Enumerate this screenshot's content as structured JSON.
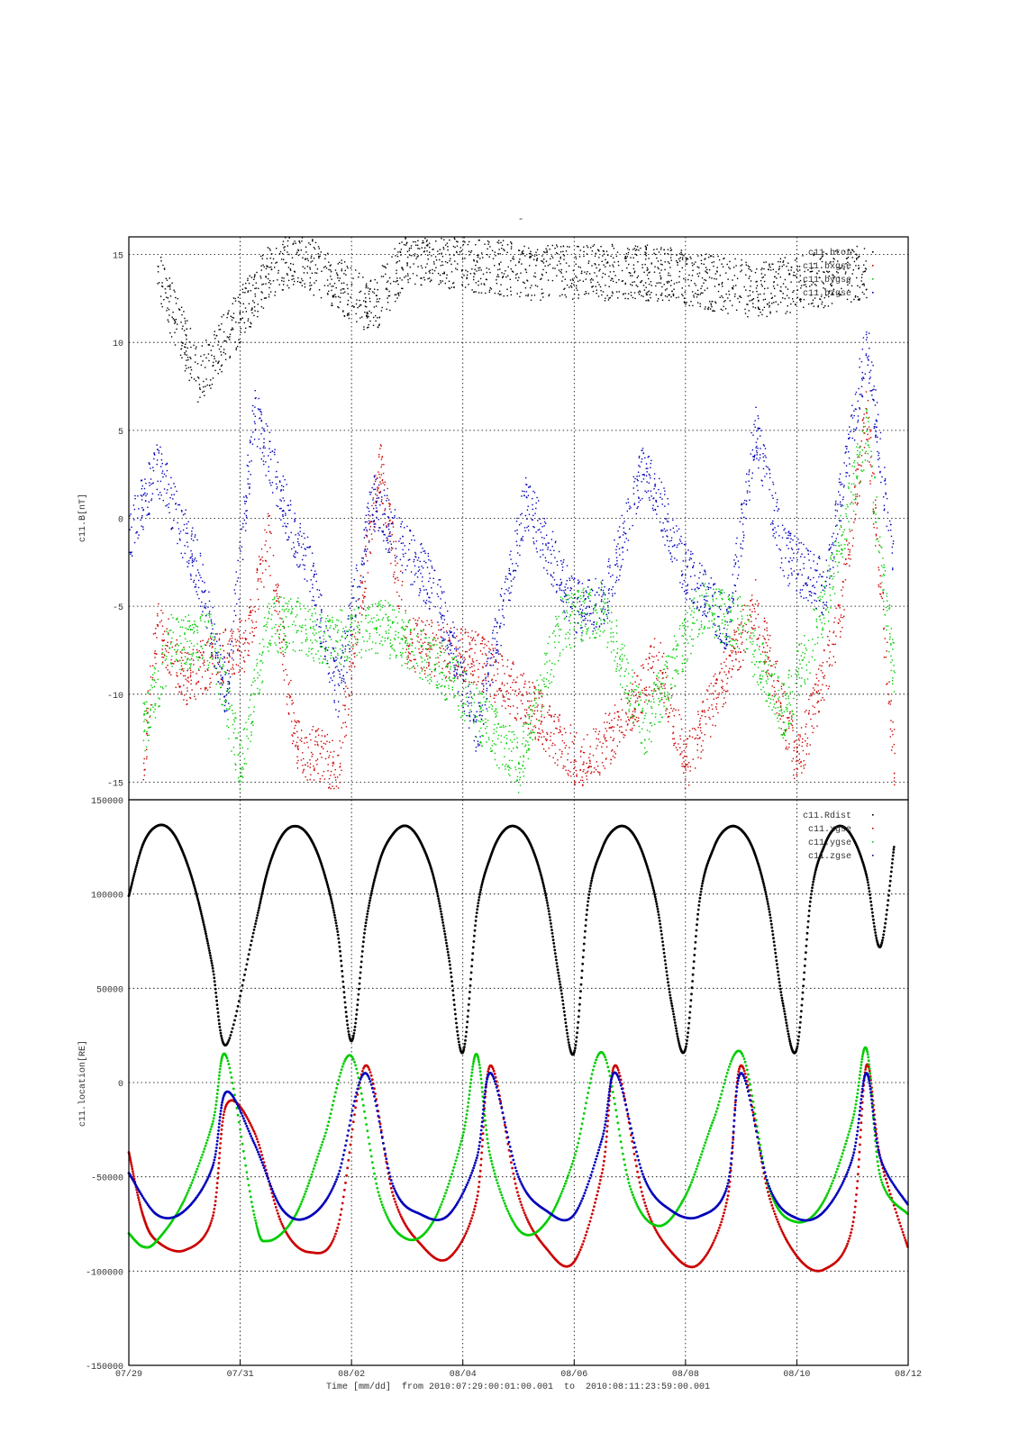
{
  "figure": {
    "title": "-",
    "xlabel": "Time [mm/dd]  from 2010:07:29:00:01:00.001  to  2010:08:11:23:59:00.001",
    "x_tick_labels": [
      "07/29",
      "07/31",
      "08/02",
      "08/04",
      "08/06",
      "08/08",
      "08/10",
      "08/12"
    ]
  },
  "chart_data": [
    {
      "type": "scatter",
      "panel": "top",
      "ylabel": "c11.B[nT]",
      "ylim": [
        -16,
        16
      ],
      "xlim": [
        "2010-07-29",
        "2010-08-12"
      ],
      "grid": true,
      "legend": "top-right",
      "y_ticks": [
        15,
        10,
        5,
        0,
        -5,
        -10,
        -15
      ],
      "y_tick_labels": [
        "15",
        "10",
        "5",
        "0",
        "-5",
        "-10",
        "-15"
      ],
      "series": [
        {
          "name": "c11.btot",
          "color": "#000000",
          "x": [
            "07/29 12:00",
            "07/30 06:00",
            "07/31 12:00",
            "08/01 00:00",
            "08/02 09:00",
            "08/03 00:00",
            "08/05 06:00",
            "08/07 09:00",
            "08/09 06:00",
            "08/11 06:00"
          ],
          "y": [
            14,
            8,
            14,
            15,
            12,
            15,
            14,
            14,
            13,
            14
          ]
        },
        {
          "name": "c11.bxgse",
          "color": "#cc0000",
          "x": [
            "07/29 06:00",
            "07/29 12:00",
            "07/30 00:00",
            "07/31 03:00",
            "07/31 12:00",
            "08/01 00:00",
            "08/01 18:00",
            "08/02 12:00",
            "08/03 00:00",
            "08/04 06:00",
            "08/05 00:00",
            "08/06 03:00",
            "08/06 18:00",
            "08/07 12:00",
            "08/08 00:00",
            "08/09 06:00",
            "08/10 00:00",
            "08/10 18:00",
            "08/11 06:00",
            "08/11 18:00"
          ],
          "y": [
            -14,
            -6,
            -9,
            -7,
            -1,
            -13,
            -14,
            3,
            -7,
            -8,
            -10,
            -14,
            -12,
            -8,
            -14,
            -5,
            -14,
            -6,
            6,
            -14
          ]
        },
        {
          "name": "c11.bygse",
          "color": "#00cc00",
          "x": [
            "07/29 06:00",
            "07/29 18:00",
            "07/30 12:00",
            "07/31 00:00",
            "07/31 12:00",
            "08/01 00:00",
            "08/01 12:00",
            "08/02 12:00",
            "08/03 12:00",
            "08/04 00:00",
            "08/05 00:00",
            "08/05 18:00",
            "08/06 12:00",
            "08/07 06:00",
            "08/08 06:00",
            "08/09 00:00",
            "08/09 18:00",
            "08/10 12:00",
            "08/11 06:00",
            "08/11 18:00"
          ],
          "y": [
            -12,
            -7,
            -7,
            -14,
            -6,
            -6,
            -7,
            -6,
            -8,
            -10,
            -14,
            -6,
            -5,
            -12,
            -5,
            -6,
            -11,
            -5,
            5,
            -9
          ]
        },
        {
          "name": "c11.bzgse",
          "color": "#0000bb",
          "x": [
            "07/29 00:00",
            "07/29 12:00",
            "07/30 06:00",
            "07/30 18:00",
            "07/31 06:00",
            "07/31 18:00",
            "08/01 06:00",
            "08/01 18:00",
            "08/02 09:00",
            "08/03 00:00",
            "08/03 12:00",
            "08/04 06:00",
            "08/05 03:00",
            "08/06 00:00",
            "08/06 12:00",
            "08/07 06:00",
            "08/08 00:00",
            "08/08 18:00",
            "08/09 06:00",
            "08/09 18:00",
            "08/10 12:00",
            "08/11 06:00",
            "08/11 18:00"
          ],
          "y": [
            -1,
            3,
            -3,
            -10,
            6,
            1,
            -3,
            -10,
            1,
            -2,
            -4,
            -12,
            1,
            -5,
            -5,
            3,
            -3,
            -6,
            5,
            -2,
            -4,
            10,
            -3
          ]
        }
      ]
    },
    {
      "type": "scatter",
      "panel": "bottom",
      "ylabel": "c11.location[RE]",
      "ylim": [
        -150000,
        150000
      ],
      "xlim": [
        "2010-07-29",
        "2010-08-12"
      ],
      "grid": true,
      "legend": "top-right",
      "y_ticks": [
        150000,
        100000,
        50000,
        0,
        -50000,
        -100000,
        -150000
      ],
      "y_tick_labels": [
        "150000",
        "100000",
        "50000",
        "0",
        "-50000",
        "-100000",
        "-150000"
      ],
      "series": [
        {
          "name": "c11.Rdist",
          "color": "#000000",
          "x": [
            "07/29 00:00",
            "07/29 06:00",
            "07/29 12:00",
            "07/29 18:00",
            "07/30 00:00",
            "07/30 06:00",
            "07/30 12:00",
            "07/30 18:00",
            "07/31 06:00",
            "07/31 12:00",
            "07/31 18:00",
            "08/01 00:00",
            "08/01 06:00",
            "08/01 12:00",
            "08/01 18:00",
            "08/02 00:00",
            "08/02 06:00",
            "08/02 12:00",
            "08/02 18:00",
            "08/03 00:00",
            "08/03 06:00",
            "08/03 12:00",
            "08/03 18:00",
            "08/04 00:00",
            "08/04 06:00",
            "08/04 12:00",
            "08/04 18:00",
            "08/05 00:00",
            "08/05 06:00",
            "08/05 12:00",
            "08/05 18:00",
            "08/06 00:00",
            "08/06 06:00",
            "08/06 12:00",
            "08/06 18:00",
            "08/07 00:00",
            "08/07 06:00",
            "08/07 12:00",
            "08/07 18:00",
            "08/08 00:00",
            "08/08 06:00",
            "08/08 12:00",
            "08/08 18:00",
            "08/09 00:00",
            "08/09 06:00",
            "08/09 12:00",
            "08/09 18:00",
            "08/10 00:00",
            "08/10 06:00",
            "08/10 12:00",
            "08/10 18:00",
            "08/11 00:00",
            "08/11 06:00",
            "08/11 12:00",
            "08/11 18:00"
          ],
          "y": [
            99000,
            126000,
            136000,
            134000,
            120000,
            96000,
            62000,
            20000,
            81000,
            113000,
            131000,
            136000,
            130000,
            112000,
            80000,
            22000,
            83000,
            117000,
            132000,
            136000,
            127000,
            106000,
            66000,
            16000,
            90000,
            120000,
            134000,
            135000,
            124000,
            98000,
            52000,
            16000,
            96000,
            124000,
            135000,
            134000,
            120000,
            92000,
            42000,
            18000,
            96000,
            124000,
            135000,
            134000,
            121000,
            92000,
            42000,
            18000,
            98000,
            126000,
            136000,
            130000,
            110000,
            72000,
            126000
          ]
        },
        {
          "name": "c11.xgse",
          "color": "#cc0000",
          "x": [
            "07/29 00:00",
            "07/29 06:00",
            "07/29 12:00",
            "07/30 00:00",
            "07/30 12:00",
            "07/30 18:00",
            "07/31 06:00",
            "07/31 18:00",
            "08/01 06:00",
            "08/01 18:00",
            "08/02 06:00",
            "08/02 18:00",
            "08/03 06:00",
            "08/03 18:00",
            "08/04 06:00",
            "08/04 12:00",
            "08/05 00:00",
            "08/05 12:00",
            "08/06 00:00",
            "08/06 12:00",
            "08/06 18:00",
            "08/07 06:00",
            "08/07 18:00",
            "08/08 06:00",
            "08/08 18:00",
            "08/09 00:00",
            "08/09 12:00",
            "08/10 00:00",
            "08/10 12:00",
            "08/11 00:00",
            "08/11 06:00",
            "08/11 12:00",
            "08/12 00:00"
          ],
          "y": [
            -37000,
            -70000,
            -84000,
            -89000,
            -72000,
            -12000,
            -26000,
            -75000,
            -90000,
            -77000,
            9000,
            -60000,
            -86000,
            -93000,
            -62000,
            9000,
            -60000,
            -88000,
            -95000,
            -48000,
            9000,
            -62000,
            -90000,
            -96000,
            -62000,
            9000,
            -60000,
            -92000,
            -99000,
            -76000,
            9000,
            -40000,
            -88000
          ]
        },
        {
          "name": "c11.ygse",
          "color": "#00cc00",
          "x": [
            "07/29 00:00",
            "07/29 06:00",
            "07/29 12:00",
            "07/30 00:00",
            "07/30 12:00",
            "07/30 18:00",
            "07/31 06:00",
            "07/31 12:00",
            "08/01 00:00",
            "08/01 12:00",
            "08/02 00:00",
            "08/02 12:00",
            "08/03 00:00",
            "08/03 12:00",
            "08/04 00:00",
            "08/04 06:00",
            "08/04 12:00",
            "08/05 00:00",
            "08/05 12:00",
            "08/06 00:00",
            "08/06 12:00",
            "08/07 00:00",
            "08/07 12:00",
            "08/08 00:00",
            "08/08 12:00",
            "08/09 00:00",
            "08/09 12:00",
            "08/10 00:00",
            "08/10 12:00",
            "08/11 00:00",
            "08/11 06:00",
            "08/11 12:00",
            "08/12 00:00"
          ],
          "y": [
            -80000,
            -87000,
            -84000,
            -62000,
            -22000,
            14000,
            -70000,
            -84000,
            -70000,
            -30000,
            14000,
            -60000,
            -83000,
            -72000,
            -28000,
            15000,
            -40000,
            -78000,
            -74000,
            -40000,
            16000,
            -55000,
            -76000,
            -60000,
            -20000,
            16000,
            -56000,
            -74000,
            -62000,
            -20000,
            18000,
            -50000,
            -70000
          ]
        },
        {
          "name": "c11.zgse",
          "color": "#0000bb",
          "x": [
            "07/29 00:00",
            "07/29 12:00",
            "07/30 00:00",
            "07/30 12:00",
            "07/30 18:00",
            "07/31 06:00",
            "07/31 18:00",
            "08/01 06:00",
            "08/01 18:00",
            "08/02 06:00",
            "08/02 18:00",
            "08/03 06:00",
            "08/03 18:00",
            "08/04 06:00",
            "08/04 12:00",
            "08/05 00:00",
            "08/05 12:00",
            "08/06 00:00",
            "08/06 12:00",
            "08/06 18:00",
            "08/07 06:00",
            "08/07 18:00",
            "08/08 06:00",
            "08/08 18:00",
            "08/09 00:00",
            "08/09 12:00",
            "08/10 00:00",
            "08/10 12:00",
            "08/11 00:00",
            "08/11 06:00",
            "08/11 12:00",
            "08/12 00:00"
          ],
          "y": [
            -48000,
            -70000,
            -68000,
            -45000,
            -5000,
            -32000,
            -67000,
            -71000,
            -50000,
            5000,
            -55000,
            -70000,
            -70000,
            -40000,
            5000,
            -50000,
            -68000,
            -70000,
            -30000,
            5000,
            -50000,
            -68000,
            -71000,
            -55000,
            5000,
            -55000,
            -72000,
            -68000,
            -40000,
            5000,
            -40000,
            -65000
          ]
        }
      ]
    }
  ]
}
